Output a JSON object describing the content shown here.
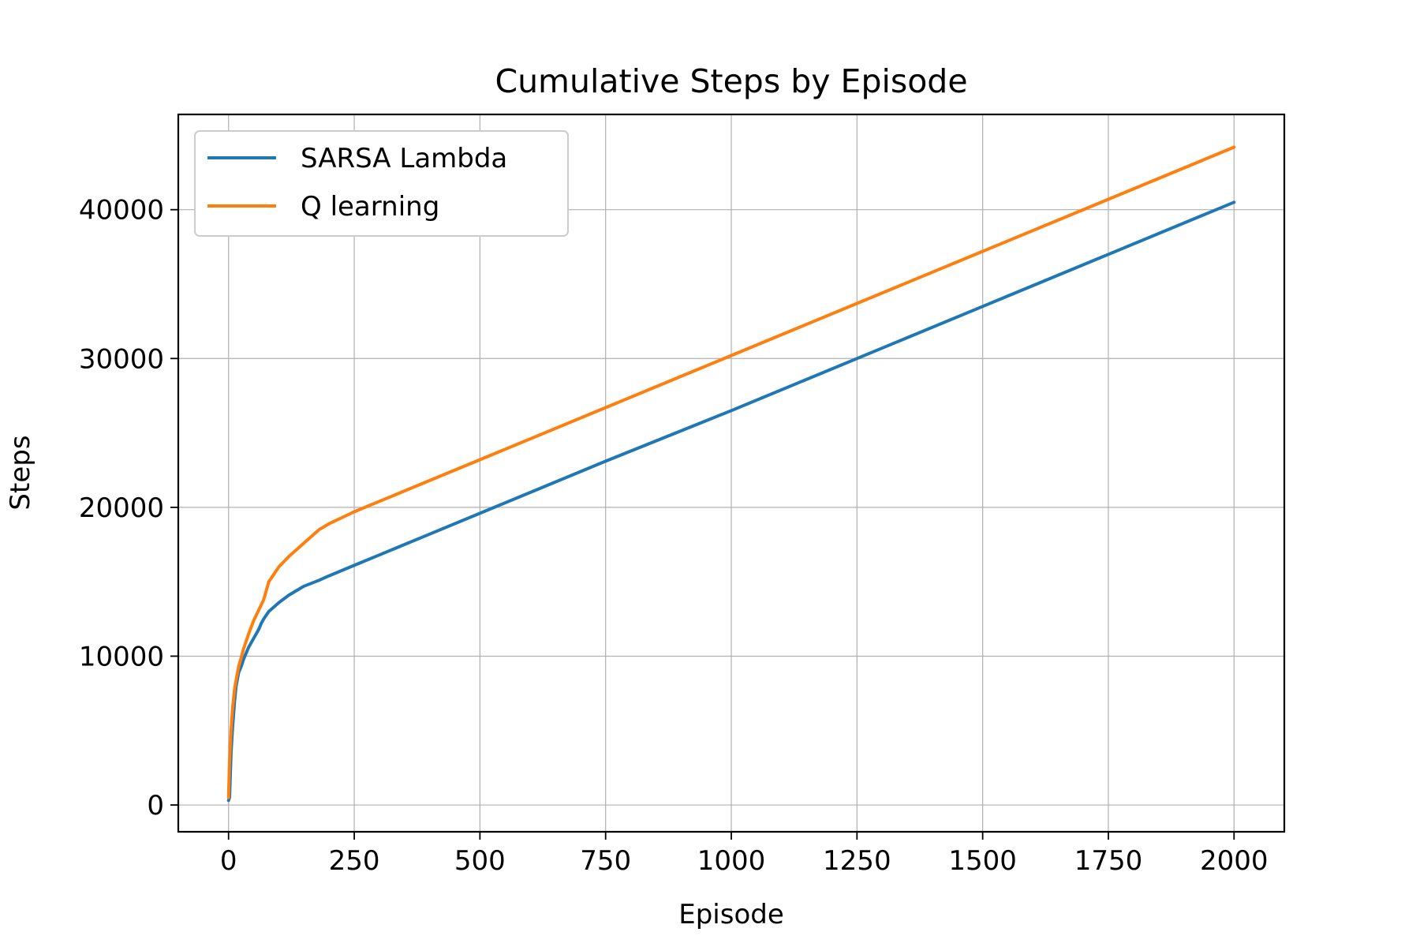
{
  "chart_data": {
    "type": "line",
    "title": "Cumulative Steps by Episode",
    "xlabel": "Episode",
    "ylabel": "Steps",
    "xlim": [
      -100,
      2100
    ],
    "ylim": [
      -1800,
      46400
    ],
    "xticks": [
      0,
      250,
      500,
      750,
      1000,
      1250,
      1500,
      1750,
      2000
    ],
    "yticks": [
      0,
      10000,
      20000,
      30000,
      40000
    ],
    "grid": true,
    "legend": "top-left",
    "series": [
      {
        "name": "SARSA Lambda",
        "color": "#1f77b4",
        "x": [
          0,
          2,
          5,
          8,
          12,
          15,
          20,
          25,
          30,
          40,
          50,
          60,
          65,
          70,
          80,
          100,
          120,
          150,
          180,
          200,
          250,
          300,
          400,
          500,
          750,
          1000,
          1250,
          1500,
          1750,
          2000
        ],
        "y": [
          300,
          500,
          3500,
          5200,
          7000,
          8000,
          8900,
          9300,
          9800,
          10600,
          11200,
          11800,
          12200,
          12500,
          13000,
          13600,
          14100,
          14700,
          15100,
          15400,
          16100,
          16800,
          18200,
          19600,
          23100,
          26500,
          30000,
          33500,
          37000,
          40500
        ]
      },
      {
        "name": "Q learning",
        "color": "#ff7f0e",
        "x": [
          0,
          2,
          5,
          8,
          12,
          15,
          20,
          25,
          30,
          40,
          50,
          60,
          70,
          80,
          90,
          100,
          120,
          150,
          180,
          200,
          250,
          300,
          400,
          500,
          750,
          1000,
          1250,
          1500,
          1750,
          2000
        ],
        "y": [
          500,
          3000,
          5000,
          6500,
          7800,
          8400,
          9300,
          9900,
          10500,
          11500,
          12400,
          13100,
          13800,
          15000,
          15500,
          16000,
          16700,
          17600,
          18500,
          18900,
          19700,
          20400,
          21800,
          23200,
          26700,
          30200,
          33700,
          37200,
          40700,
          44200
        ]
      }
    ]
  }
}
